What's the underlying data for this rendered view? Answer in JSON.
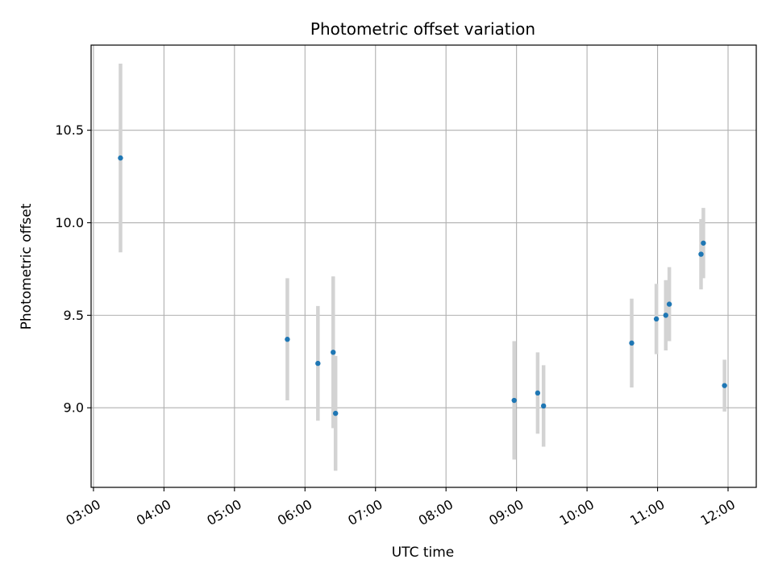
{
  "chart_data": {
    "type": "scatter",
    "title": "Photometric offset variation",
    "xlabel": "UTC time",
    "ylabel": "Photometric offset",
    "x_ticks": [
      "03:00",
      "04:00",
      "05:00",
      "06:00",
      "07:00",
      "08:00",
      "09:00",
      "10:00",
      "11:00",
      "12:00"
    ],
    "y_ticks": [
      "9.0",
      "9.5",
      "10.0",
      "10.5"
    ],
    "xlim": [
      "02:58",
      "12:24"
    ],
    "ylim": [
      8.57,
      10.96
    ],
    "grid": true,
    "point_color": "#1f77b4",
    "errorbar_color": "#d3d3d3",
    "series": [
      {
        "points": [
          {
            "x": "03:23",
            "y": 10.35,
            "yerr": 0.51
          },
          {
            "x": "05:45",
            "y": 9.37,
            "yerr": 0.33
          },
          {
            "x": "06:11",
            "y": 9.24,
            "yerr": 0.31
          },
          {
            "x": "06:24",
            "y": 9.3,
            "yerr": 0.41
          },
          {
            "x": "06:26",
            "y": 8.97,
            "yerr": 0.31
          },
          {
            "x": "08:58",
            "y": 9.04,
            "yerr": 0.32
          },
          {
            "x": "09:18",
            "y": 9.08,
            "yerr": 0.22
          },
          {
            "x": "09:23",
            "y": 9.01,
            "yerr": 0.22
          },
          {
            "x": "10:38",
            "y": 9.35,
            "yerr": 0.24
          },
          {
            "x": "10:59",
            "y": 9.48,
            "yerr": 0.19
          },
          {
            "x": "11:07",
            "y": 9.5,
            "yerr": 0.19
          },
          {
            "x": "11:10",
            "y": 9.56,
            "yerr": 0.2
          },
          {
            "x": "11:37",
            "y": 9.83,
            "yerr": 0.19
          },
          {
            "x": "11:39",
            "y": 9.89,
            "yerr": 0.19
          },
          {
            "x": "11:57",
            "y": 9.12,
            "yerr": 0.14
          }
        ]
      }
    ]
  }
}
